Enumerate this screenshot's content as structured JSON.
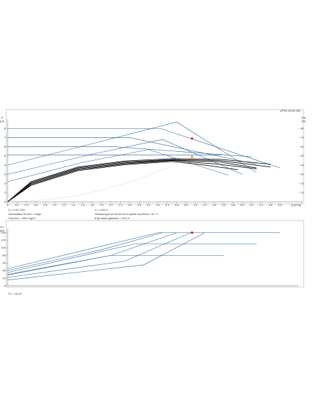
{
  "model_label": "UPS2 25-80 180",
  "info": {
    "flow": "Q = 3.927 m³/h",
    "head": "H = 4.911 m",
    "liquid": "Изпомпвана течност = Вода",
    "temperature": "Температура на течността по време на работа = 60 °C",
    "density": "Плътност = 983.2 kg/m³",
    "efficiency": "КПД помпа+двигател = 20.8 %",
    "power": "P1 = 140 W"
  },
  "colors": {
    "curve_blue": "#1f5f95",
    "curve_black": "#111111",
    "system_curve": "#e7a0a6",
    "duty_point_orange": "#f39a1e",
    "duty_point_red": "#d41f1f",
    "axis": "#666666"
  },
  "chart_data": [
    {
      "type": "line",
      "xlabel": "Q [m³/h]",
      "ylabel": "H [m]",
      "y2label": "Eta [%]",
      "x_ticks": [
        "0",
        "0.2",
        "0.4",
        "0.6",
        "0.8",
        "1.0",
        "1.2",
        "1.4",
        "1.6",
        "1.8",
        "2.0",
        "2.2",
        "2.4",
        "2.6",
        "2.8",
        "3.0",
        "3.2",
        "3.4",
        "3.6",
        "3.8",
        "4.0",
        "4.2",
        "4.4",
        "4.6",
        "4.8",
        "5.0",
        "5.2",
        "5.4",
        "5.6",
        "5.8"
      ],
      "y_ticks": [
        "0",
        "1",
        "2",
        "3",
        "4",
        "5",
        "6",
        "7",
        "8"
      ],
      "y2_ticks": [
        "0",
        "10",
        "20",
        "30",
        "40",
        "50",
        "60",
        "70",
        "80"
      ],
      "xlim": [
        0,
        6.2
      ],
      "ylim": [
        0,
        9
      ],
      "y2lim": [
        0,
        90
      ],
      "series": [
        {
          "kind": "constant-curve",
          "x": [
            0,
            3.25,
            5.8
          ],
          "y": [
            8,
            8,
            3.7
          ]
        },
        {
          "kind": "constant-curve",
          "x": [
            0,
            2.6,
            5.3
          ],
          "y": [
            7,
            7,
            4.1
          ]
        },
        {
          "kind": "constant-curve",
          "x": [
            0,
            2.3,
            5.2
          ],
          "y": [
            6,
            6,
            4.9
          ]
        },
        {
          "kind": "constant-curve",
          "x": [
            0,
            2.5,
            4.55
          ],
          "y": [
            5.1,
            5.1,
            5.1
          ]
        },
        {
          "kind": "proportional-curve",
          "x": [
            0,
            2.0,
            3.6,
            5.3
          ],
          "y": [
            4,
            6.6,
            8.7,
            3.2
          ]
        },
        {
          "kind": "proportional-curve",
          "x": [
            0,
            1.8,
            3.3,
            5.0
          ],
          "y": [
            3,
            5.2,
            6.8,
            3.0
          ]
        },
        {
          "kind": "proportional-curve",
          "x": [
            0,
            1.6,
            3.0,
            4.7
          ],
          "y": [
            2.2,
            4.3,
            5.7,
            2.9
          ]
        },
        {
          "kind": "pump-curve",
          "x": [
            0,
            0.5,
            1.5,
            2.5,
            3.5,
            4.5,
            5.6
          ],
          "y": [
            0,
            2.2,
            3.8,
            4.45,
            4.7,
            4.65,
            4.1
          ]
        },
        {
          "kind": "pump-curve",
          "x": [
            0,
            0.5,
            1.5,
            2.5,
            3.5,
            4.5,
            5.6
          ],
          "y": [
            0,
            2.1,
            3.7,
            4.35,
            4.6,
            4.5,
            3.8
          ]
        },
        {
          "kind": "pump-curve",
          "x": [
            0,
            0.5,
            1.5,
            2.5,
            3.5,
            4.5,
            5.3
          ],
          "y": [
            0,
            2.0,
            3.6,
            4.25,
            4.55,
            4.35,
            3.7
          ]
        },
        {
          "kind": "pump-curve",
          "x": [
            0,
            0.5,
            1.5,
            2.5,
            3.5,
            4.5,
            5.3
          ],
          "y": [
            0,
            1.9,
            3.5,
            4.15,
            4.5,
            4.1,
            3.6
          ]
        },
        {
          "kind": "pump-curve",
          "x": [
            0,
            0.5,
            1.5,
            2.5,
            3.5,
            4.2,
            4.9
          ],
          "y": [
            0,
            1.8,
            3.4,
            4.05,
            4.4,
            4.0,
            3.5
          ]
        },
        {
          "kind": "system-curve",
          "x": [
            0,
            0.5,
            1.0,
            1.5,
            2.0,
            2.5,
            3.0,
            3.5,
            3.93
          ],
          "y": [
            0,
            0.08,
            0.32,
            0.72,
            1.27,
            1.99,
            2.86,
            3.9,
            4.91
          ]
        }
      ],
      "duty_points": [
        {
          "x": 3.927,
          "y": 4.911
        },
        {
          "x": 3.927,
          "y2": 69
        }
      ]
    },
    {
      "type": "line",
      "ylabel": "P1 [W]",
      "y_ticks": [
        "0",
        "20",
        "40",
        "60",
        "80",
        "100",
        "120",
        "140"
      ],
      "xlim": [
        0,
        6.2
      ],
      "ylim": [
        0,
        150
      ],
      "series": [
        {
          "kind": "constant-curve",
          "x": [
            0,
            3.2,
            5.8
          ],
          "y": [
            45,
            140,
            140
          ]
        },
        {
          "kind": "constant-curve",
          "x": [
            0,
            2.7,
            5.3
          ],
          "y": [
            35,
            110,
            110
          ]
        },
        {
          "kind": "constant-curve",
          "x": [
            0,
            2.2,
            4.6
          ],
          "y": [
            28,
            80,
            80
          ]
        },
        {
          "kind": "proportional-curve",
          "x": [
            0,
            2.0,
            3.3
          ],
          "y": [
            40,
            95,
            140
          ]
        },
        {
          "kind": "proportional-curve",
          "x": [
            0,
            2.2,
            3.6
          ],
          "y": [
            30,
            80,
            140
          ]
        },
        {
          "kind": "proportional-curve",
          "x": [
            0,
            2.5,
            3.9
          ],
          "y": [
            22,
            65,
            140
          ]
        },
        {
          "kind": "proportional-curve",
          "x": [
            0,
            2.9,
            4.2
          ],
          "y": [
            15,
            55,
            140
          ]
        }
      ],
      "duty_points": [
        {
          "x": 3.927,
          "y": 140
        }
      ]
    }
  ]
}
